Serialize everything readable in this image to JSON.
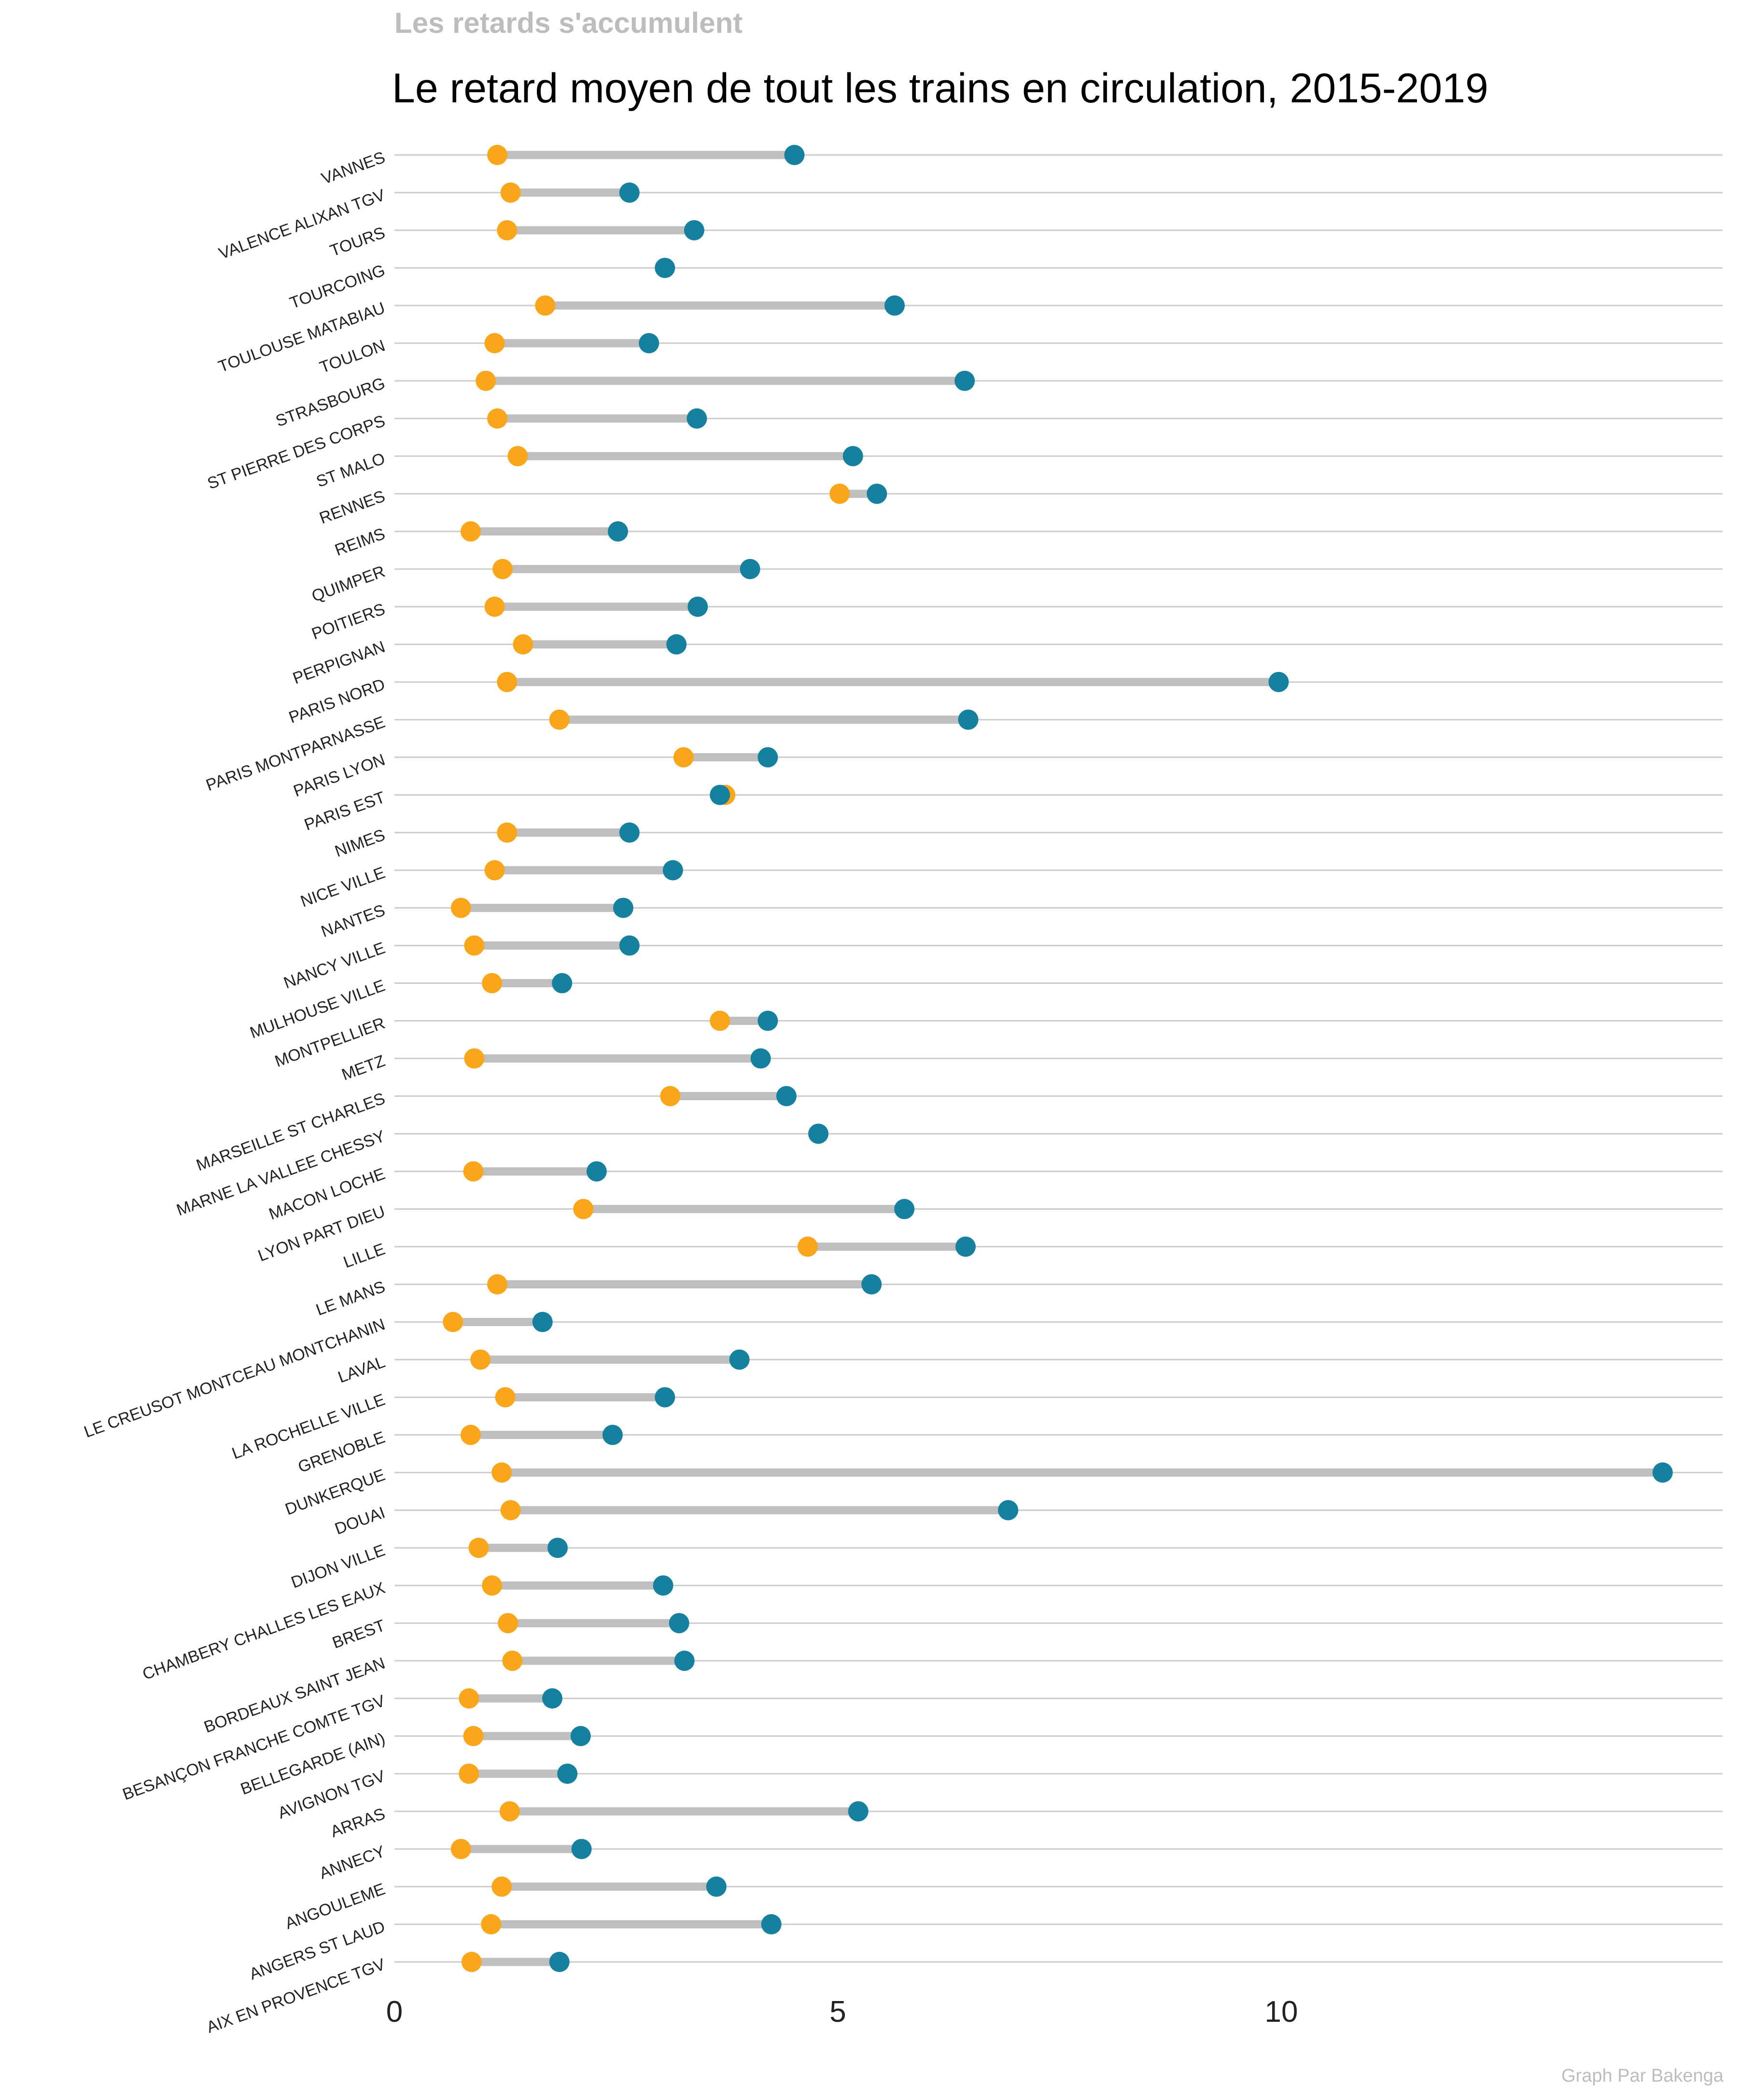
{
  "chart_data": {
    "type": "dumbbell",
    "subtitle": "Les retards s'accumulent",
    "title": "Le retard moyen de tout les trains en circulation, 2015-2019",
    "caption": "Graph Par Bakenga",
    "xlabel": "",
    "ylabel": "",
    "xlim": [
      0,
      14.8
    ],
    "xticks": [
      "0",
      "5",
      "10"
    ],
    "grid": "horizontal",
    "colors": {
      "start": "#F9A61A",
      "end": "#16809F",
      "segment": "#BFBFBF",
      "grid": "#CCCCCC"
    },
    "categories": [
      "AIX EN PROVENCE TGV",
      "ANGERS ST LAUD",
      "ANGOULEME",
      "ANNECY",
      "ARRAS",
      "AVIGNON TGV",
      "BELLEGARDE (AIN)",
      "BESANÇON FRANCHE COMTE TGV",
      "BORDEAUX SAINT JEAN",
      "BREST",
      "CHAMBERY CHALLES LES EAUX",
      "DIJON VILLE",
      "DOUAI",
      "DUNKERQUE",
      "GRENOBLE",
      "LA ROCHELLE VILLE",
      "LAVAL",
      "LE CREUSOT MONTCEAU MONTCHANIN",
      "LE MANS",
      "LILLE",
      "LYON PART DIEU",
      "MACON LOCHE",
      "MARNE LA VALLEE CHESSY",
      "MARSEILLE ST CHARLES",
      "METZ",
      "MONTPELLIER",
      "MULHOUSE VILLE",
      "NANCY VILLE",
      "NANTES",
      "NICE VILLE",
      "NIMES",
      "PARIS EST",
      "PARIS LYON",
      "PARIS MONTPARNASSE",
      "PARIS NORD",
      "PERPIGNAN",
      "POITIERS",
      "QUIMPER",
      "REIMS",
      "RENNES",
      "ST MALO",
      "ST PIERRE DES CORPS",
      "STRASBOURG",
      "TOULON",
      "TOULOUSE MATABIAU",
      "TOURCOING",
      "TOURS",
      "VALENCE ALIXAN TGV",
      "VANNES"
    ],
    "series": [
      {
        "values": [
          0.87,
          1.09,
          1.21,
          0.75,
          1.3,
          0.84,
          0.89,
          0.84,
          1.33,
          1.28,
          1.1,
          0.95,
          1.31,
          1.21,
          0.86,
          1.25,
          0.97,
          0.66,
          1.16,
          4.66,
          2.13,
          0.89,
          null,
          3.11,
          0.9,
          3.67,
          1.1,
          0.9,
          0.75,
          1.13,
          1.27,
          3.73,
          3.26,
          1.86,
          1.27,
          1.45,
          1.13,
          1.22,
          0.86,
          5.02,
          1.39,
          1.16,
          1.03,
          1.13,
          1.7,
          null,
          1.27,
          1.31,
          1.16
        ]
      },
      {
        "values": [
          1.86,
          4.25,
          3.63,
          2.11,
          5.23,
          1.95,
          2.1,
          1.78,
          3.27,
          3.21,
          3.03,
          1.84,
          6.92,
          14.3,
          2.46,
          3.05,
          3.89,
          1.67,
          5.38,
          6.44,
          5.75,
          2.28,
          4.78,
          4.42,
          4.13,
          4.21,
          1.89,
          2.65,
          2.58,
          3.14,
          2.65,
          3.67,
          4.21,
          6.47,
          9.97,
          3.18,
          3.42,
          4.01,
          2.52,
          5.44,
          5.17,
          3.41,
          6.43,
          2.87,
          5.64,
          3.05,
          3.38,
          2.65,
          4.51
        ]
      }
    ]
  }
}
